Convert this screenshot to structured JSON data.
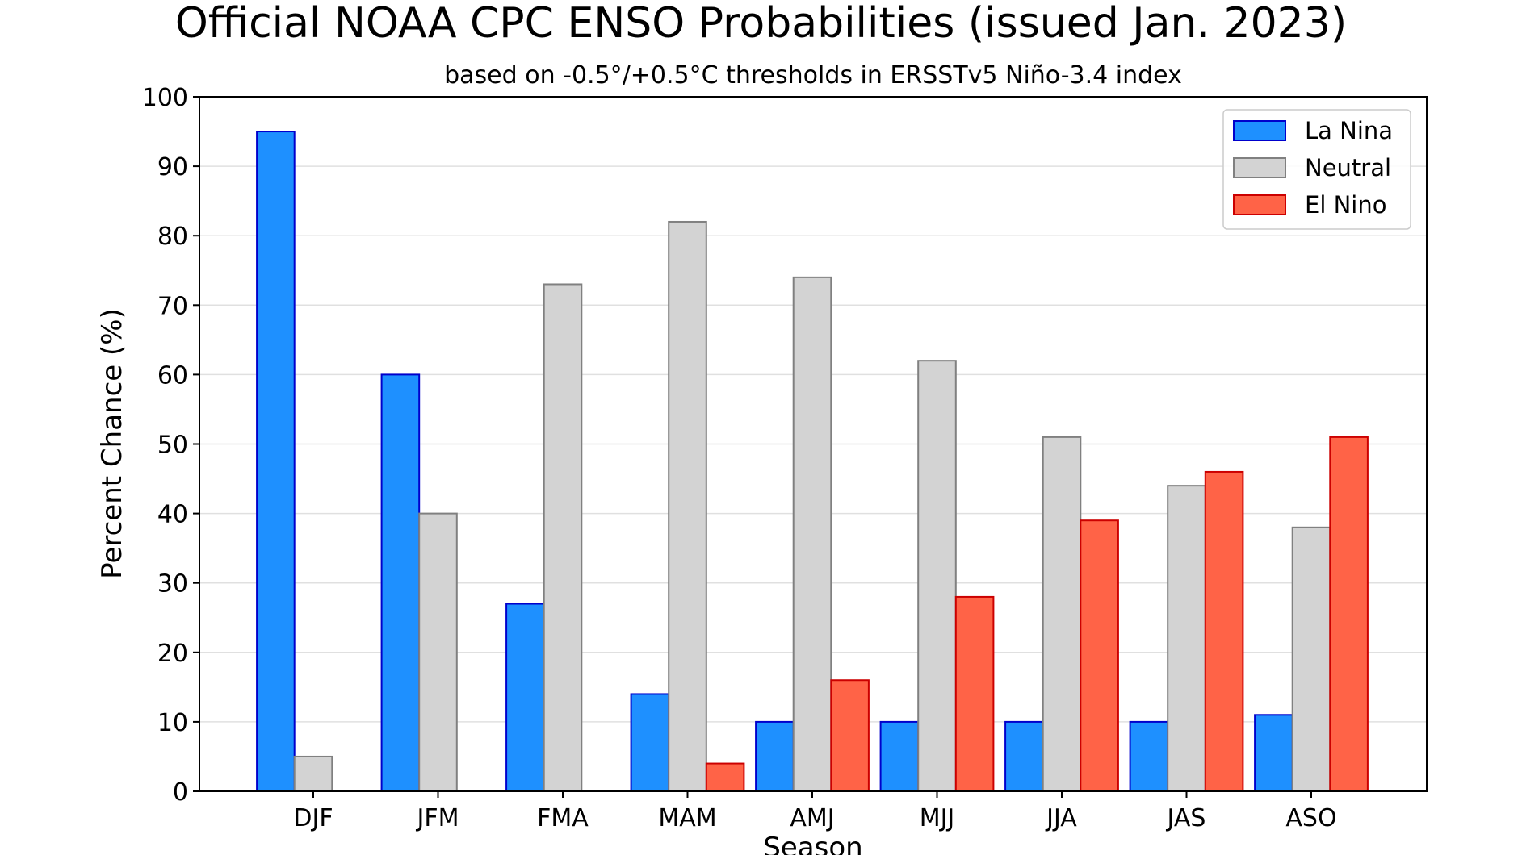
{
  "chart_data": {
    "type": "bar",
    "title": "Official NOAA CPC ENSO Probabilities (issued Jan. 2023)",
    "subtitle": "based on -0.5°/+0.5°C thresholds in ERSSTv5 Niño-3.4 index",
    "xlabel": "Season",
    "ylabel": "Percent Chance (%)",
    "categories": [
      "DJF",
      "JFM",
      "FMA",
      "MAM",
      "AMJ",
      "MJJ",
      "JJA",
      "JAS",
      "ASO"
    ],
    "ylim": [
      0,
      100
    ],
    "yticks": [
      0,
      10,
      20,
      30,
      40,
      50,
      60,
      70,
      80,
      90,
      100
    ],
    "grid": true,
    "legend_position": "top-right",
    "series": [
      {
        "name": "La Nina",
        "color": "#1e90ff",
        "edge": "#0000cc",
        "values": [
          95,
          60,
          27,
          14,
          10,
          10,
          10,
          10,
          11
        ]
      },
      {
        "name": "Neutral",
        "color": "#d3d3d3",
        "edge": "#808080",
        "values": [
          5,
          40,
          73,
          82,
          74,
          62,
          51,
          44,
          38
        ]
      },
      {
        "name": "El Nino",
        "color": "#ff6347",
        "edge": "#cc0000",
        "values": [
          0,
          0,
          0,
          4,
          16,
          28,
          39,
          46,
          51
        ]
      }
    ]
  }
}
